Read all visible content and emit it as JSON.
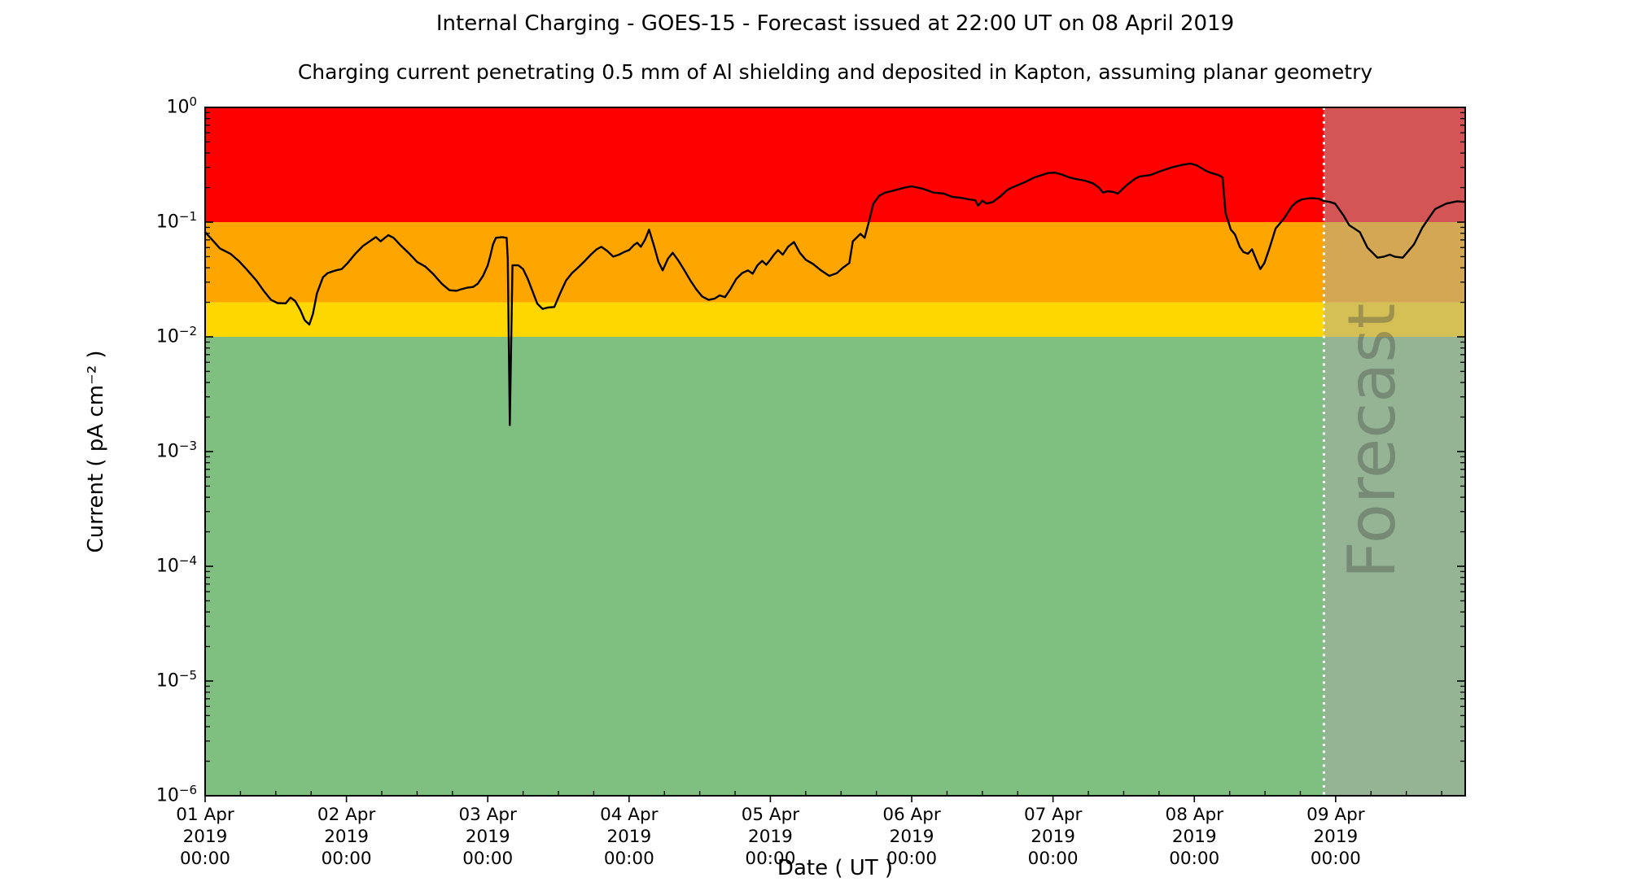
{
  "title": "Internal Charging - GOES-15 - Forecast issued at 22:00 UT on 08 April 2019",
  "subtitle": "Charging current penetrating 0.5 mm of Al shielding and deposited in Kapton, assuming planar geometry",
  "axes": {
    "ylabel": "Current ( pA cm⁻² )",
    "xlabel": "Date ( UT )",
    "y_ticks": [
      {
        "base": "10",
        "exp": "0"
      },
      {
        "base": "10",
        "exp": "−1"
      },
      {
        "base": "10",
        "exp": "−2"
      },
      {
        "base": "10",
        "exp": "−3"
      },
      {
        "base": "10",
        "exp": "−4"
      },
      {
        "base": "10",
        "exp": "−5"
      },
      {
        "base": "10",
        "exp": "−6"
      }
    ],
    "x_ticks": [
      {
        "lines": [
          "01 Apr",
          "2019",
          "00:00"
        ]
      },
      {
        "lines": [
          "02 Apr",
          "2019",
          "00:00"
        ]
      },
      {
        "lines": [
          "03 Apr",
          "2019",
          "00:00"
        ]
      },
      {
        "lines": [
          "04 Apr",
          "2019",
          "00:00"
        ]
      },
      {
        "lines": [
          "05 Apr",
          "2019",
          "00:00"
        ]
      },
      {
        "lines": [
          "06 Apr",
          "2019",
          "00:00"
        ]
      },
      {
        "lines": [
          "07 Apr",
          "2019",
          "00:00"
        ]
      },
      {
        "lines": [
          "08 Apr",
          "2019",
          "00:00"
        ]
      },
      {
        "lines": [
          "09 Apr",
          "2019",
          "00:00"
        ]
      }
    ]
  },
  "chart_data": {
    "type": "line",
    "title": "Internal Charging - GOES-15 - Forecast issued at 22:00 UT on 08 April 2019",
    "xlabel": "Date ( UT )",
    "ylabel": "Current ( pA cm^-2 )",
    "y_scale": "log",
    "ylim": [
      1e-06,
      1
    ],
    "x_start": "2019-04-01T00:00Z",
    "x_end_hours": 214,
    "x_tick_interval_hours": 24,
    "x_minor_tick_hours": 6,
    "grid": false,
    "risk_bands": [
      {
        "name": "red",
        "from": 1.0,
        "to": 0.1,
        "color": "#ff0000"
      },
      {
        "name": "orange",
        "from": 0.1,
        "to": 0.02,
        "color": "#ffa500"
      },
      {
        "name": "yellow",
        "from": 0.02,
        "to": 0.01,
        "color": "#ffd700"
      },
      {
        "name": "green",
        "from": 0.01,
        "to": 1e-06,
        "color": "#7fbf7f"
      }
    ],
    "forecast": {
      "label": "Forecast",
      "start_hours": 190,
      "issued": "22:00 UT 08 April 2019",
      "overlay_color": "rgba(170,170,170,0.5)",
      "divider_color": "#ffffff",
      "watermark_color": "rgba(70,70,70,0.38)"
    },
    "series": [
      {
        "name": "charging-current",
        "color": "#000000",
        "units": "pA cm^-2",
        "x_units": "hours since 01 Apr 2019 00:00 UT",
        "points": [
          [
            0,
            0.082
          ],
          [
            1,
            0.072
          ],
          [
            2.5,
            0.059
          ],
          [
            4.3,
            0.053
          ],
          [
            5.7,
            0.046
          ],
          [
            7,
            0.039
          ],
          [
            8.7,
            0.031
          ],
          [
            10,
            0.025
          ],
          [
            11.2,
            0.021
          ],
          [
            12.3,
            0.0197
          ],
          [
            13.7,
            0.0196
          ],
          [
            14.5,
            0.022
          ],
          [
            15.3,
            0.0205
          ],
          [
            16.2,
            0.017
          ],
          [
            16.9,
            0.014
          ],
          [
            17.7,
            0.0128
          ],
          [
            18.3,
            0.0158
          ],
          [
            19,
            0.024
          ],
          [
            20,
            0.033
          ],
          [
            20.8,
            0.036
          ],
          [
            22.2,
            0.038
          ],
          [
            23.2,
            0.039
          ],
          [
            24.2,
            0.044
          ],
          [
            25.5,
            0.053
          ],
          [
            26.8,
            0.062
          ],
          [
            28.3,
            0.07
          ],
          [
            29,
            0.074
          ],
          [
            29.8,
            0.068
          ],
          [
            31.1,
            0.077
          ],
          [
            32,
            0.073
          ],
          [
            33.3,
            0.062
          ],
          [
            34.7,
            0.053
          ],
          [
            36,
            0.045
          ],
          [
            37.4,
            0.041
          ],
          [
            38.8,
            0.035
          ],
          [
            40.2,
            0.029
          ],
          [
            41.5,
            0.0255
          ],
          [
            42.7,
            0.0252
          ],
          [
            43.5,
            0.026
          ],
          [
            44.5,
            0.0268
          ],
          [
            45.5,
            0.0272
          ],
          [
            46.3,
            0.029
          ],
          [
            47.2,
            0.034
          ],
          [
            48,
            0.042
          ],
          [
            48.4,
            0.05
          ],
          [
            48.9,
            0.064
          ],
          [
            49.4,
            0.073
          ],
          [
            50.4,
            0.074
          ],
          [
            51.2,
            0.073
          ],
          [
            51.4,
            0.048
          ],
          [
            51.75,
            0.0017
          ],
          [
            52.2,
            0.042
          ],
          [
            53.2,
            0.042
          ],
          [
            54,
            0.039
          ],
          [
            54.8,
            0.032
          ],
          [
            55.6,
            0.025
          ],
          [
            56.4,
            0.0195
          ],
          [
            57.3,
            0.0175
          ],
          [
            58.2,
            0.018
          ],
          [
            59.3,
            0.0182
          ],
          [
            60.3,
            0.024
          ],
          [
            61.3,
            0.031
          ],
          [
            62.3,
            0.036
          ],
          [
            63.3,
            0.04
          ],
          [
            64.5,
            0.046
          ],
          [
            65.5,
            0.052
          ],
          [
            66.5,
            0.058
          ],
          [
            67.3,
            0.061
          ],
          [
            68.3,
            0.056
          ],
          [
            69.3,
            0.05
          ],
          [
            70.3,
            0.052
          ],
          [
            71.2,
            0.055
          ],
          [
            72,
            0.057
          ],
          [
            72.8,
            0.063
          ],
          [
            73.4,
            0.066
          ],
          [
            74,
            0.061
          ],
          [
            74.7,
            0.07
          ],
          [
            75.4,
            0.086
          ],
          [
            76.2,
            0.063
          ],
          [
            77,
            0.045
          ],
          [
            77.7,
            0.038
          ],
          [
            78.6,
            0.048
          ],
          [
            79.4,
            0.054
          ],
          [
            80.4,
            0.046
          ],
          [
            81.4,
            0.038
          ],
          [
            82.4,
            0.031
          ],
          [
            83.4,
            0.026
          ],
          [
            84.4,
            0.0225
          ],
          [
            85.5,
            0.021
          ],
          [
            86.5,
            0.0215
          ],
          [
            87.4,
            0.023
          ],
          [
            88.3,
            0.0222
          ],
          [
            89.2,
            0.026
          ],
          [
            90.2,
            0.032
          ],
          [
            91.2,
            0.036
          ],
          [
            92.2,
            0.038
          ],
          [
            93,
            0.0355
          ],
          [
            93.8,
            0.042
          ],
          [
            94.6,
            0.046
          ],
          [
            95.3,
            0.0425
          ],
          [
            96,
            0.047
          ],
          [
            96.6,
            0.052
          ],
          [
            97.3,
            0.057
          ],
          [
            98.1,
            0.052
          ],
          [
            99,
            0.061
          ],
          [
            100,
            0.067
          ],
          [
            101,
            0.054
          ],
          [
            102,
            0.047
          ],
          [
            103.3,
            0.043
          ],
          [
            104.6,
            0.038
          ],
          [
            106,
            0.034
          ],
          [
            107.3,
            0.036
          ],
          [
            108.3,
            0.04
          ],
          [
            109.4,
            0.044
          ],
          [
            110,
            0.068
          ],
          [
            111.3,
            0.079
          ],
          [
            112,
            0.073
          ],
          [
            112.7,
            0.099
          ],
          [
            113.5,
            0.145
          ],
          [
            114.5,
            0.17
          ],
          [
            115.4,
            0.18
          ],
          [
            117.2,
            0.19
          ],
          [
            118.8,
            0.2
          ],
          [
            120,
            0.205
          ],
          [
            121.8,
            0.196
          ],
          [
            123.7,
            0.181
          ],
          [
            125.5,
            0.177
          ],
          [
            126.9,
            0.166
          ],
          [
            128.3,
            0.163
          ],
          [
            129.7,
            0.158
          ],
          [
            130.8,
            0.155
          ],
          [
            131.3,
            0.139
          ],
          [
            132,
            0.154
          ],
          [
            132.7,
            0.145
          ],
          [
            133.8,
            0.15
          ],
          [
            135.2,
            0.17
          ],
          [
            136.2,
            0.19
          ],
          [
            137,
            0.2
          ],
          [
            138,
            0.21
          ],
          [
            139.4,
            0.225
          ],
          [
            140.8,
            0.245
          ],
          [
            142.1,
            0.257
          ],
          [
            143.2,
            0.268
          ],
          [
            144.3,
            0.27
          ],
          [
            145.3,
            0.262
          ],
          [
            146.7,
            0.246
          ],
          [
            148,
            0.237
          ],
          [
            149.4,
            0.23
          ],
          [
            150.8,
            0.218
          ],
          [
            151.8,
            0.2
          ],
          [
            152.5,
            0.181
          ],
          [
            153.3,
            0.186
          ],
          [
            154.3,
            0.183
          ],
          [
            155,
            0.177
          ],
          [
            156.5,
            0.21
          ],
          [
            158,
            0.24
          ],
          [
            158.7,
            0.25
          ],
          [
            160.5,
            0.257
          ],
          [
            162.4,
            0.28
          ],
          [
            164.2,
            0.3
          ],
          [
            165.9,
            0.315
          ],
          [
            167.3,
            0.324
          ],
          [
            168.4,
            0.313
          ],
          [
            170,
            0.28
          ],
          [
            170.7,
            0.27
          ],
          [
            172.1,
            0.257
          ],
          [
            172.8,
            0.245
          ],
          [
            173.3,
            0.12
          ],
          [
            174.2,
            0.086
          ],
          [
            174.9,
            0.078
          ],
          [
            175.7,
            0.061
          ],
          [
            176.3,
            0.055
          ],
          [
            177.1,
            0.053
          ],
          [
            177.8,
            0.058
          ],
          [
            178.6,
            0.046
          ],
          [
            179.2,
            0.039
          ],
          [
            179.9,
            0.044
          ],
          [
            180.8,
            0.06
          ],
          [
            181.8,
            0.088
          ],
          [
            183.2,
            0.107
          ],
          [
            184.6,
            0.138
          ],
          [
            185.4,
            0.15
          ],
          [
            186.3,
            0.158
          ],
          [
            187.7,
            0.162
          ],
          [
            189.1,
            0.16
          ],
          [
            190,
            0.153
          ],
          [
            191,
            0.15
          ],
          [
            191.9,
            0.145
          ],
          [
            193.3,
            0.115
          ],
          [
            194.3,
            0.094
          ],
          [
            196.1,
            0.082
          ],
          [
            197.4,
            0.06
          ],
          [
            199.1,
            0.049
          ],
          [
            200.2,
            0.05
          ],
          [
            201.2,
            0.052
          ],
          [
            202,
            0.05
          ],
          [
            203.4,
            0.049
          ],
          [
            205.3,
            0.064
          ],
          [
            206.7,
            0.089
          ],
          [
            207.9,
            0.11
          ],
          [
            208.9,
            0.13
          ],
          [
            210.8,
            0.145
          ],
          [
            212.6,
            0.152
          ],
          [
            214,
            0.15
          ]
        ]
      }
    ]
  },
  "layout_colors": {
    "plot_border": "#000000",
    "tick_color": "#000000",
    "text_color": "#000000",
    "background": "#ffffff"
  }
}
